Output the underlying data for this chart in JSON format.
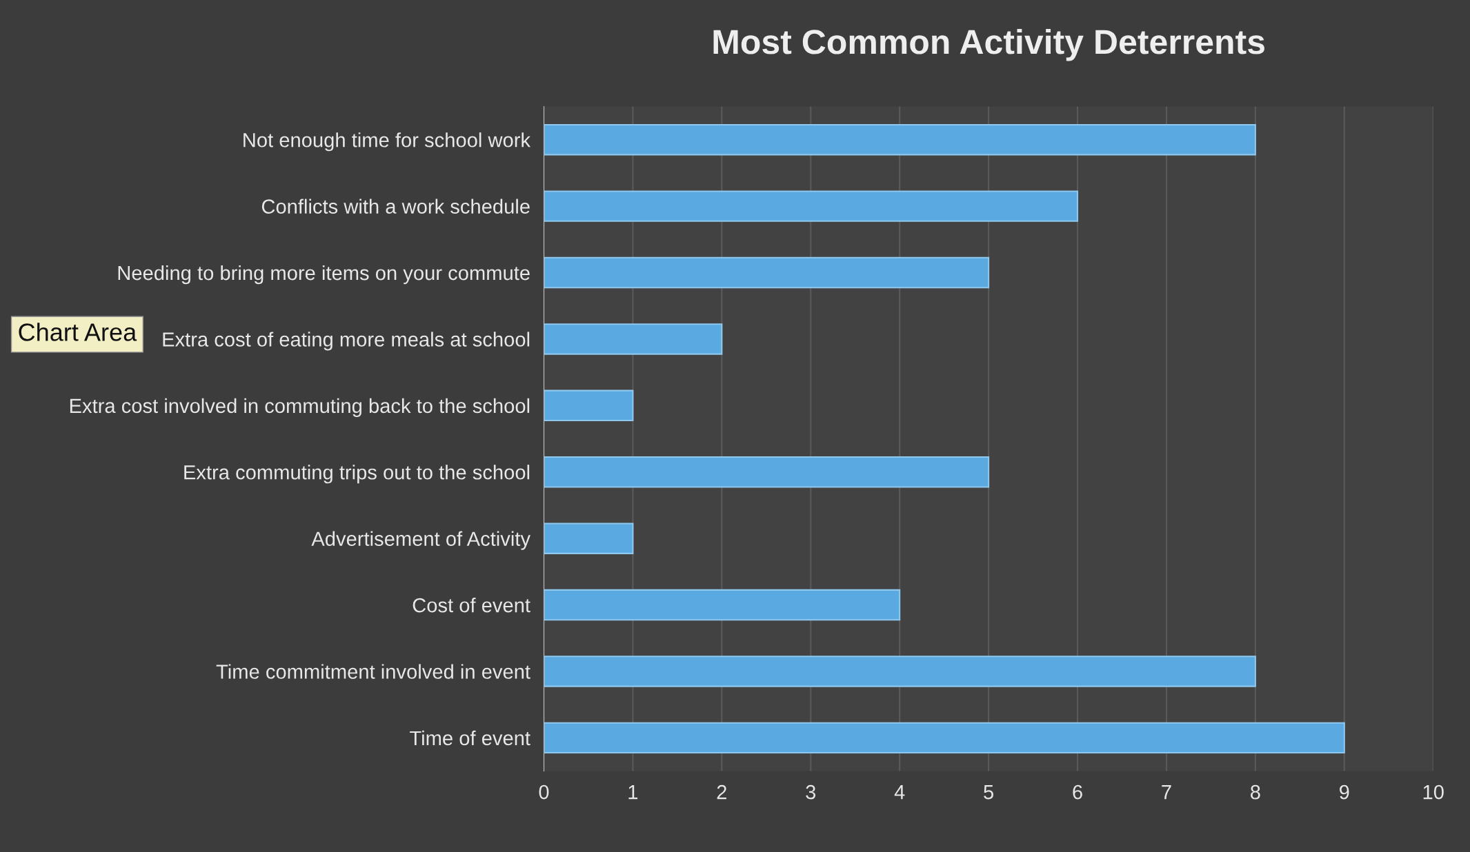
{
  "chart_data": {
    "type": "bar",
    "orientation": "horizontal",
    "title": "Most Common Activity Deterrents",
    "categories": [
      "Not enough time for school work",
      "Conflicts with a work schedule",
      "Needing to bring more items on your commute",
      "Extra cost of eating more meals at school",
      "Extra cost involved in commuting back to the school",
      "Extra commuting trips out to the school",
      "Advertisement of Activity",
      "Cost of event",
      "Time commitment involved in event",
      "Time of event"
    ],
    "values": [
      8,
      6,
      5,
      2,
      1,
      5,
      1,
      4,
      8,
      9
    ],
    "color": "#5aa9e0",
    "xlim": [
      0,
      10
    ],
    "xticks": [
      0,
      1,
      2,
      3,
      4,
      5,
      6,
      7,
      8,
      9,
      10
    ],
    "grid": "x",
    "legend": false,
    "annotations": [
      "Chart Area"
    ]
  }
}
